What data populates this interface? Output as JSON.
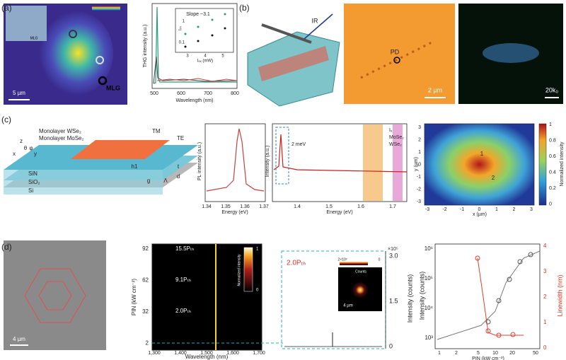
{
  "panels": [
    {
      "label": "(a)",
      "scale_bar": "5 µm",
      "marker": "MLG",
      "inset_marker": "MLG",
      "plot": {
        "ylabel": "THG intensity (a.u.)",
        "xlabel": "Wavelength (nm)",
        "xticks": [
          "500",
          "600",
          "700",
          "800"
        ],
        "inset": {
          "ylabel": "Iₜₕ",
          "xlabel": "Iₑₓ (mW)",
          "yticks": [
            "1",
            "0.1"
          ],
          "xticks": [
            "3",
            "4",
            "5"
          ],
          "annotation": "Slope ~3.1"
        }
      }
    },
    {
      "label": "(b)",
      "beam": "IR",
      "marker": "PD",
      "scale_bar": "2 µm",
      "k_bar": "20k₀"
    },
    {
      "label": "(c)",
      "schematic": [
        "Monolayer WSe₂",
        "Monolayer MoSe₂",
        "TM",
        "TE",
        "SiN",
        "SiO₂",
        "Si",
        "h1",
        "g",
        "Λ",
        "t",
        "d",
        "z",
        "x",
        "y",
        "θ",
        "φ"
      ],
      "pl_plot": {
        "ylabel": "PL intensity (a.u.)",
        "xlabel": "Energy (eV)",
        "xticks": [
          "1.34",
          "1.35",
          "1.36",
          "1.37"
        ]
      },
      "spectrum": {
        "ylabel": "Intensity (a.u.)",
        "xlabel": "Energy (eV)",
        "xticks": [
          "1.4",
          "1.5",
          "1.6",
          "1.7"
        ],
        "annotation": "2 meV",
        "legend": [
          "Iₓ",
          "MoSe₂",
          "WSe₂"
        ]
      },
      "map": {
        "xlabel": "x (µm)",
        "ylabel": "y (µm)",
        "xticks": [
          "-3",
          "-2",
          "-1",
          "0",
          "1",
          "2",
          "3"
        ],
        "yticks": [
          "3",
          "2",
          "1",
          "0",
          "-1",
          "-2",
          "-3"
        ],
        "colorbar_ticks": [
          "1",
          "0.8",
          "0.6",
          "0.4",
          "0.2",
          "0"
        ],
        "colorbar_label": "Normalized intensity",
        "markers": [
          "1",
          "2"
        ]
      }
    },
    {
      "label": "(d)",
      "scale_bar": "4 µm",
      "heatmap": {
        "ylabel": "PIN (kW cm⁻²)",
        "xlabel": "Wavelength (nm)",
        "yticks": [
          "92",
          "62",
          "32",
          "2"
        ],
        "xticks": [
          "1,300",
          "1,400",
          "1,500",
          "1,600",
          "1,700"
        ],
        "arrows": [
          "15.5Pₜₕ",
          "9.1Pₜₕ",
          "2.0Pₜₕ"
        ],
        "colorbar_ticks": [
          "1",
          "0"
        ],
        "colorbar_label": "Normalized intensity"
      },
      "spectrum": {
        "annotation": "2.0Pₜₕ",
        "inset_ticks": [
          "2×10³",
          "0"
        ],
        "inset_label": "Counts",
        "inset_scale": "4 µm",
        "yticks": [
          "3.0",
          "1.5",
          "0"
        ],
        "multiplier": "×10⁵",
        "ylabel": "Intensity (counts)"
      },
      "lL_plot": {
        "yticks": [
          "10⁶",
          "10⁵",
          "10⁴",
          "10³"
        ],
        "y2ticks": [
          "4",
          "3",
          "2",
          "1",
          "0"
        ],
        "xticks": [
          "1",
          "2",
          "5",
          "10",
          "20",
          "50"
        ],
        "xlabel": "PIN (kW cm⁻²)",
        "ylabel": "Intensity (counts)",
        "y2label": "Linewidth (nm)"
      }
    }
  ]
}
